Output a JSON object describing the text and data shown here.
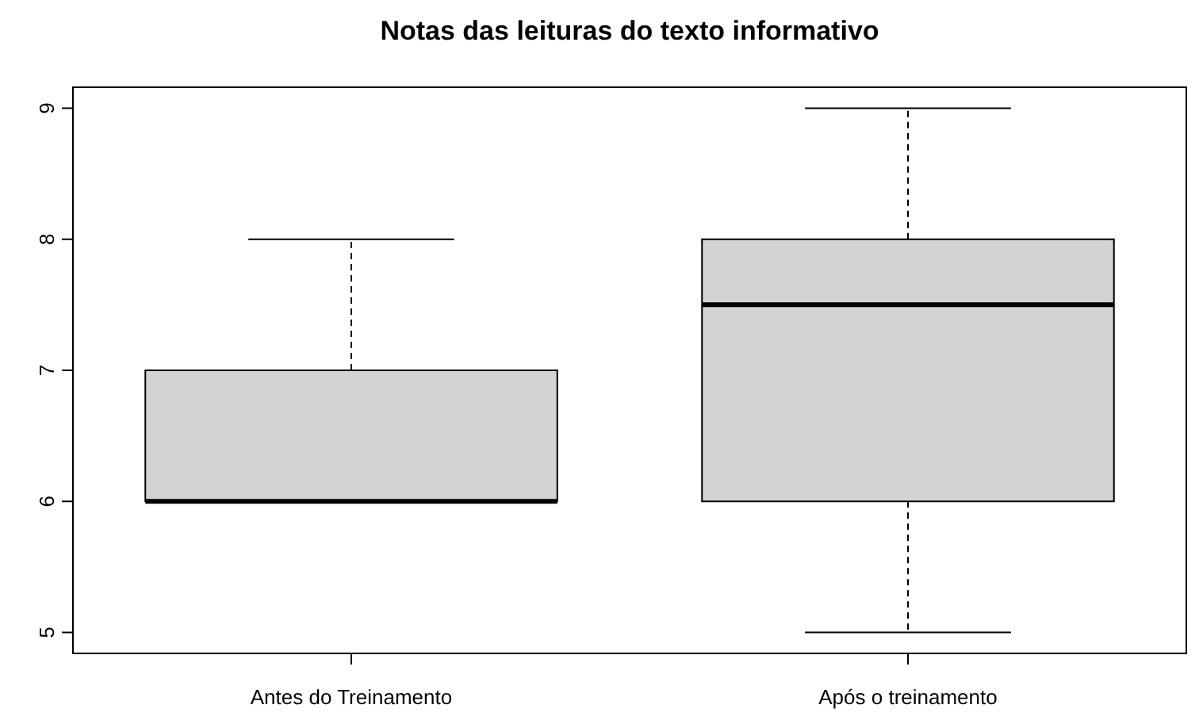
{
  "chart_data": {
    "type": "box",
    "title": "Notas das leituras do texto informativo",
    "categories": [
      "Antes do Treinamento",
      "Após o treinamento"
    ],
    "boxes": [
      {
        "low": 6,
        "q1": 6,
        "median": 6,
        "q3": 7,
        "high": 8
      },
      {
        "low": 5,
        "q1": 6,
        "median": 7.5,
        "q3": 8,
        "high": 9
      }
    ],
    "color": "#d3d3d3",
    "ylim": [
      4.84,
      9.16
    ],
    "yticks": [
      5,
      6,
      7,
      8,
      9
    ],
    "grid": false
  }
}
